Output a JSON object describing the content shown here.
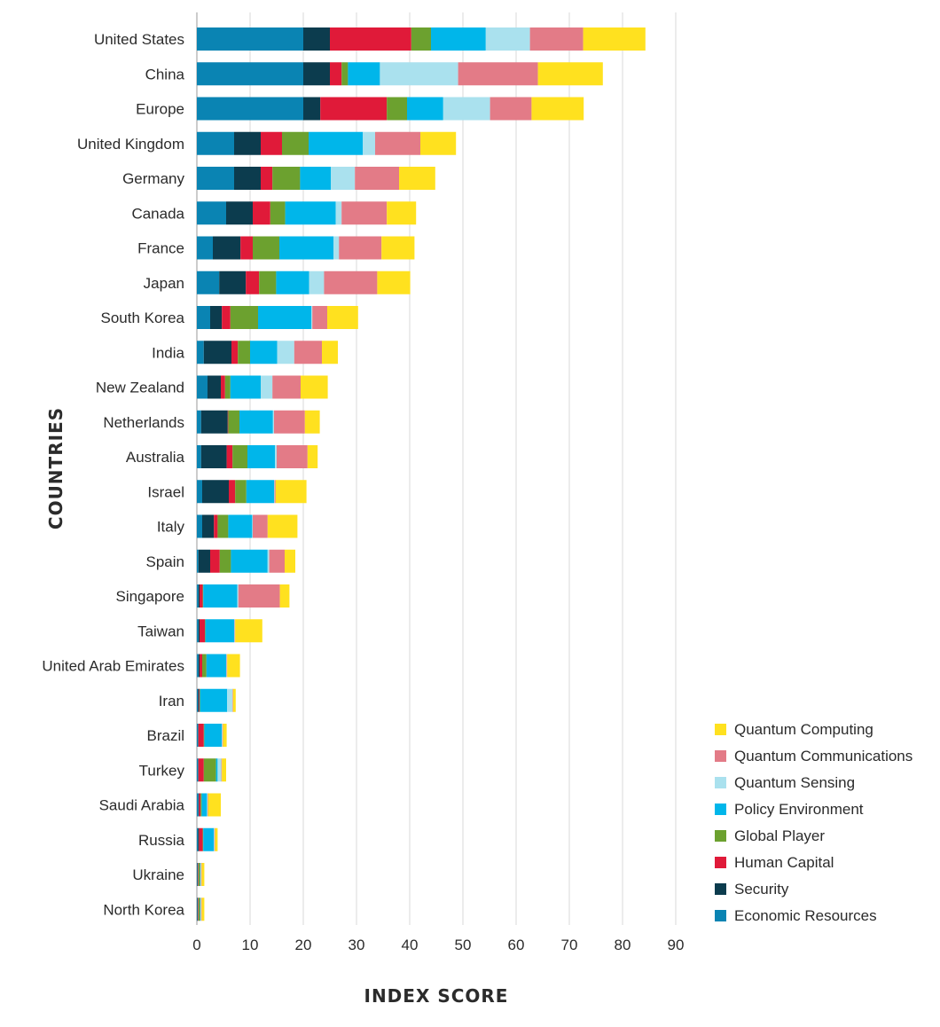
{
  "chart_data": {
    "type": "bar",
    "orientation": "horizontal",
    "stacked": true,
    "xlabel": "INDEX SCORE",
    "ylabel": "COUNTRIES",
    "xlim": [
      0,
      90
    ],
    "xticks": [
      0,
      10,
      20,
      30,
      40,
      50,
      60,
      70,
      80,
      90
    ],
    "grid": true,
    "legend_position": "bottom-right",
    "categories": [
      "United States",
      "China",
      "Europe",
      "United Kingdom",
      "Germany",
      "Canada",
      "France",
      "Japan",
      "South Korea",
      "India",
      "New Zealand",
      "Netherlands",
      "Australia",
      "Israel",
      "Italy",
      "Spain",
      "Singapore",
      "Taiwan",
      "United Arab Emirates",
      "Iran",
      "Brazil",
      "Turkey",
      "Saudi Arabia",
      "Russia",
      "Ukraine",
      "North Korea"
    ],
    "series": [
      {
        "name": "Economic Resources",
        "color": "#0a84b3",
        "values": [
          20,
          20,
          20,
          7,
          7,
          5.5,
          3,
          4.2,
          2.5,
          1.3,
          2,
          0.8,
          0.8,
          1,
          1,
          0.3,
          0.3,
          0.3,
          0.3,
          0.2,
          0.2,
          0.2,
          0.3,
          0.2,
          0.1,
          0.1
        ]
      },
      {
        "name": "Security",
        "color": "#0c3c4e",
        "values": [
          5,
          5,
          3.2,
          5,
          5,
          5,
          5.2,
          5,
          2.2,
          5.2,
          2.5,
          5,
          4.8,
          5,
          2.2,
          2.2,
          0.2,
          0.2,
          0.2,
          0.2,
          0.1,
          0.1,
          0.1,
          0.2,
          0.1,
          0.1
        ]
      },
      {
        "name": "Human Capital",
        "color": "#e01a39",
        "values": [
          15.3,
          2.2,
          12.5,
          4,
          2.2,
          3.3,
          2.3,
          2.5,
          1.6,
          1.2,
          0.8,
          0.1,
          1.1,
          1.2,
          0.7,
          1.8,
          0.6,
          1,
          0.5,
          0.1,
          1,
          1,
          0.3,
          0.7,
          0.1,
          0.1
        ]
      },
      {
        "name": "Global Player",
        "color": "#6ca12f",
        "values": [
          3.7,
          1.2,
          3.8,
          5,
          5.2,
          2.8,
          5,
          3.2,
          5.2,
          2.3,
          1,
          2.1,
          2.8,
          2.1,
          2,
          2.1,
          0.1,
          0.1,
          0.8,
          0.1,
          0.1,
          2.3,
          0.2,
          0.1,
          0.3,
          0.3
        ]
      },
      {
        "name": "Policy Environment",
        "color": "#00b6ea",
        "values": [
          10.3,
          6,
          6.8,
          10.2,
          5.8,
          9.5,
          10.2,
          6.2,
          10,
          5.1,
          5.7,
          6.3,
          5.2,
          5.2,
          4.5,
          6.9,
          6.4,
          5.4,
          3.7,
          5.1,
          3.3,
          0.3,
          1,
          2,
          0.1,
          0.1
        ]
      },
      {
        "name": "Quantum Sensing",
        "color": "#aae1ee",
        "values": [
          8.3,
          14.7,
          8.8,
          2.3,
          4.5,
          1.1,
          1,
          2.8,
          0.2,
          3.2,
          2.2,
          0.2,
          0.3,
          0.1,
          0.1,
          0.3,
          0.2,
          0.1,
          0.1,
          1,
          0.1,
          0.7,
          0.1,
          0.1,
          0.1,
          0.1
        ]
      },
      {
        "name": "Quantum Communications",
        "color": "#e37b87",
        "values": [
          10,
          15,
          7.8,
          8.5,
          8.3,
          8.5,
          8,
          10,
          2.8,
          5.2,
          5.3,
          5.8,
          5.8,
          0.2,
          2.8,
          2.9,
          7.8,
          0.1,
          0.1,
          0.1,
          0.1,
          0.1,
          0.1,
          0.1,
          0.1,
          0.1
        ]
      },
      {
        "name": "Quantum Computing",
        "color": "#ffe11f",
        "values": [
          11.7,
          12.2,
          9.8,
          6.7,
          6.8,
          5.5,
          6.2,
          6.2,
          5.8,
          3,
          5.1,
          2.8,
          1.9,
          5.8,
          5.6,
          2,
          1.8,
          5.1,
          2.4,
          0.5,
          0.7,
          0.8,
          2.4,
          0.5,
          0.5,
          0.5
        ]
      }
    ]
  }
}
